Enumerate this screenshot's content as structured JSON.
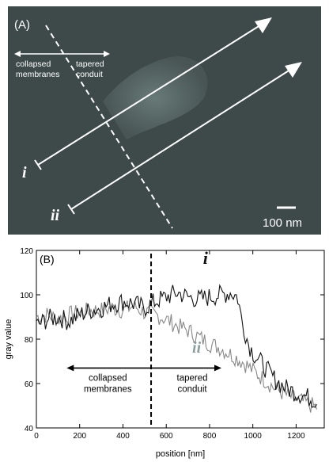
{
  "panel_a": {
    "label": "(A)",
    "left_annotation": "collapsed\nmembranes",
    "right_annotation": "tapered\nconduit",
    "line_labels": [
      "i",
      "ii"
    ],
    "scale_bar_text": "100 nm",
    "background_color": "#3e4a4a",
    "line_color": "#ffffff"
  },
  "chart_data": {
    "type": "line",
    "panel_label": "(B)",
    "xlabel": "position [nm]",
    "ylabel": "gray value",
    "xlim": [
      0,
      1330
    ],
    "ylim": [
      40,
      120
    ],
    "xticks": [
      0,
      200,
      400,
      600,
      800,
      1000,
      1200
    ],
    "yticks": [
      40,
      60,
      80,
      100,
      120
    ],
    "grid": false,
    "divider_x": 530,
    "annotation_left": "collapsed\nmembranes",
    "annotation_right": "tapered\nconduit",
    "series": [
      {
        "name": "i",
        "color": "#111111",
        "x": [
          0,
          50,
          100,
          150,
          200,
          250,
          300,
          350,
          400,
          450,
          500,
          550,
          600,
          650,
          700,
          750,
          800,
          850,
          900,
          930,
          950,
          980,
          1000,
          1050,
          1100,
          1150,
          1200,
          1250,
          1300
        ],
        "y": [
          86,
          89,
          90,
          88,
          91,
          93,
          94,
          96,
          97,
          96,
          94,
          97,
          99,
          101,
          99,
          98,
          99,
          100,
          101,
          99,
          88,
          78,
          74,
          68,
          62,
          58,
          56,
          54,
          52
        ]
      },
      {
        "name": "ii",
        "color": "#888888",
        "x": [
          0,
          50,
          100,
          150,
          200,
          250,
          300,
          350,
          400,
          450,
          500,
          550,
          600,
          650,
          700,
          750,
          800,
          850,
          900,
          950,
          1000,
          1050,
          1100,
          1150,
          1200,
          1250,
          1300
        ],
        "y": [
          90,
          91,
          89,
          91,
          92,
          93,
          93,
          94,
          93,
          95,
          92,
          91,
          89,
          86,
          84,
          81,
          78,
          76,
          73,
          70,
          66,
          62,
          58,
          55,
          53,
          51,
          49
        ]
      }
    ]
  }
}
